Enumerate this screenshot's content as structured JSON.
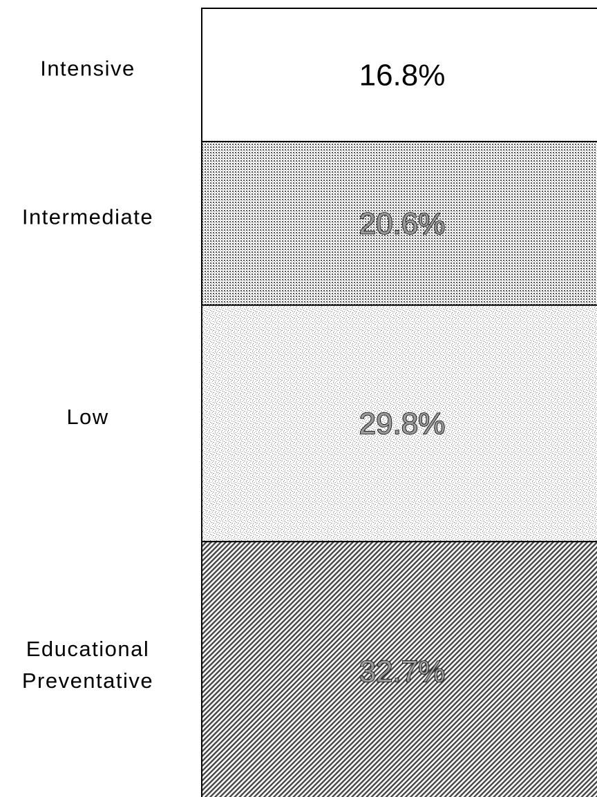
{
  "chart_data": {
    "type": "bar",
    "stacked": true,
    "orientation": "vertical-segments",
    "grid": false,
    "legend": "none",
    "segments_top_to_bottom": [
      {
        "category": [
          "Intensive"
        ],
        "value": 16.8,
        "label": "16.8%",
        "pattern": "white"
      },
      {
        "category": [
          "Intermediate"
        ],
        "value": 20.6,
        "label": "20.6%",
        "pattern": "dense-dots"
      },
      {
        "category": [
          "Low"
        ],
        "value": 29.8,
        "label": "29.8%",
        "pattern": "sparse-speckle"
      },
      {
        "category": [
          "Educational",
          "Preventative"
        ],
        "value": 32.7,
        "label": "32.7%",
        "pattern": "diagonal-hatch"
      }
    ],
    "total": 99.9
  },
  "colors": {
    "background": "#ffffff",
    "border": "#000000",
    "dots": "#7a7a7a",
    "speckle": "#8c8c8c",
    "hatch": "#555555"
  }
}
